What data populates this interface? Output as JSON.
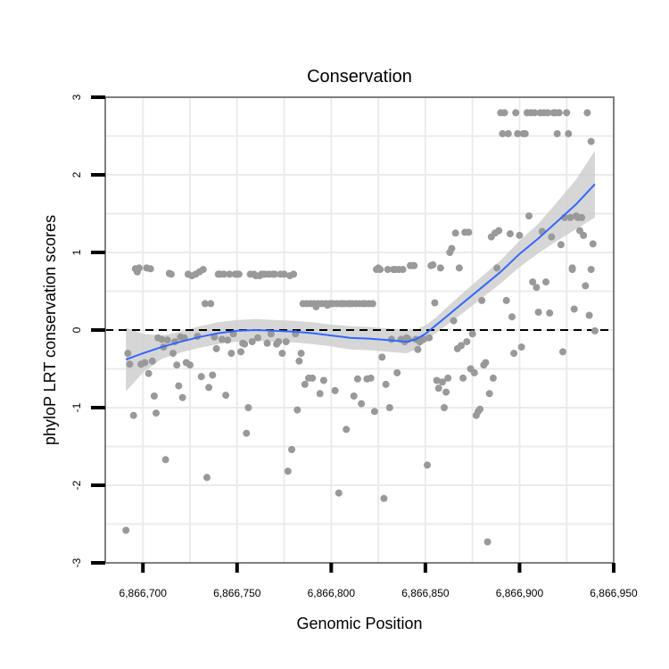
{
  "chart_data": {
    "type": "scatter",
    "title": "Conservation",
    "xlabel": "Genomic Position",
    "ylabel": "phyloP LRT conservation scores",
    "xlim": [
      6866680,
      6866950
    ],
    "ylim": [
      -3,
      3
    ],
    "x_ticks": [
      6866700,
      6866750,
      6866800,
      6866850,
      6866900,
      6866950
    ],
    "x_tick_labels": [
      "6,866,700",
      "6,866,750",
      "6,866,800",
      "6,866,850",
      "6,866,900",
      "6,866,950"
    ],
    "y_ticks": [
      -3,
      -2,
      -1,
      0,
      1,
      2,
      3
    ],
    "y_tick_labels": [
      "-3",
      "-2",
      "-1",
      "0",
      "1",
      "2",
      "3"
    ],
    "reference_line": {
      "y": 0,
      "style": "dashed",
      "color": "#000000"
    },
    "grid": true,
    "colors": {
      "points": "#999999",
      "smooth": "#3366ff",
      "band": "#cccccc",
      "frame": "#7f7f7f",
      "grid": "#ebebeb"
    },
    "points": [
      [
        6866691,
        -2.58
      ],
      [
        6866692,
        -0.3
      ],
      [
        6866693,
        -0.44
      ],
      [
        6866695,
        -1.1
      ],
      [
        6866696,
        0.79
      ],
      [
        6866697,
        0.75
      ],
      [
        6866698,
        0.8
      ],
      [
        6866699,
        -0.44
      ],
      [
        6866701,
        -0.42
      ],
      [
        6866702,
        0.8
      ],
      [
        6866703,
        -0.56
      ],
      [
        6866704,
        0.79
      ],
      [
        6866705,
        -0.4
      ],
      [
        6866706,
        -0.85
      ],
      [
        6866707,
        -1.07
      ],
      [
        6866708,
        -0.1
      ],
      [
        6866710,
        -0.12
      ],
      [
        6866711,
        -0.22
      ],
      [
        6866712,
        -1.67
      ],
      [
        6866713,
        -0.13
      ],
      [
        6866714,
        0.73
      ],
      [
        6866715,
        0.72
      ],
      [
        6866716,
        -0.3
      ],
      [
        6866717,
        -0.15
      ],
      [
        6866718,
        -0.45
      ],
      [
        6866719,
        -0.72
      ],
      [
        6866720,
        -0.09
      ],
      [
        6866721,
        -0.87
      ],
      [
        6866722,
        -0.1
      ],
      [
        6866723,
        -0.42
      ],
      [
        6866724,
        0.72
      ],
      [
        6866725,
        -0.45
      ],
      [
        6866726,
        0.7
      ],
      [
        6866728,
        0.72
      ],
      [
        6866729,
        -0.08
      ],
      [
        6866730,
        0.75
      ],
      [
        6866731,
        -0.6
      ],
      [
        6866732,
        0.78
      ],
      [
        6866733,
        0.34
      ],
      [
        6866734,
        -1.9
      ],
      [
        6866735,
        -0.74
      ],
      [
        6866736,
        0.34
      ],
      [
        6866737,
        -0.58
      ],
      [
        6866738,
        -0.09
      ],
      [
        6866739,
        -0.24
      ],
      [
        6866740,
        0.72
      ],
      [
        6866741,
        0.72
      ],
      [
        6866742,
        -0.12
      ],
      [
        6866743,
        0.72
      ],
      [
        6866744,
        -0.84
      ],
      [
        6866745,
        -0.13
      ],
      [
        6866746,
        0.72
      ],
      [
        6866747,
        -0.3
      ],
      [
        6866748,
        -0.05
      ],
      [
        6866749,
        0.72
      ],
      [
        6866750,
        0.72
      ],
      [
        6866751,
        0.72
      ],
      [
        6866752,
        -0.28
      ],
      [
        6866753,
        -0.17
      ],
      [
        6866754,
        -0.18
      ],
      [
        6866755,
        -1.33
      ],
      [
        6866756,
        -1.0
      ],
      [
        6866757,
        0.72
      ],
      [
        6866758,
        -0.15
      ],
      [
        6866759,
        0.72
      ],
      [
        6866760,
        0.7
      ],
      [
        6866761,
        -0.1
      ],
      [
        6866762,
        0.7
      ],
      [
        6866763,
        0.72
      ],
      [
        6866764,
        0.72
      ],
      [
        6866765,
        0.72
      ],
      [
        6866766,
        -0.17
      ],
      [
        6866767,
        0.72
      ],
      [
        6866768,
        -0.05
      ],
      [
        6866769,
        0.72
      ],
      [
        6866770,
        0.72
      ],
      [
        6866771,
        -0.18
      ],
      [
        6866772,
        -0.15
      ],
      [
        6866773,
        0.72
      ],
      [
        6866774,
        -0.3
      ],
      [
        6866775,
        0.72
      ],
      [
        6866776,
        -0.15
      ],
      [
        6866777,
        -1.82
      ],
      [
        6866778,
        0.7
      ],
      [
        6866779,
        -1.54
      ],
      [
        6866780,
        0.72
      ],
      [
        6866781,
        -0.05
      ],
      [
        6866782,
        -1.03
      ],
      [
        6866783,
        -0.4
      ],
      [
        6866784,
        -0.3
      ],
      [
        6866785,
        0.34
      ],
      [
        6866786,
        -0.7
      ],
      [
        6866787,
        0.34
      ],
      [
        6866788,
        -0.62
      ],
      [
        6866789,
        0.34
      ],
      [
        6866790,
        -0.62
      ],
      [
        6866791,
        0.34
      ],
      [
        6866792,
        0.3
      ],
      [
        6866793,
        0.34
      ],
      [
        6866794,
        -0.82
      ],
      [
        6866795,
        0.34
      ],
      [
        6866796,
        -0.65
      ],
      [
        6866797,
        0.34
      ],
      [
        6866798,
        0.32
      ],
      [
        6866799,
        0.34
      ],
      [
        6866800,
        0.34
      ],
      [
        6866801,
        0.34
      ],
      [
        6866802,
        -0.78
      ],
      [
        6866803,
        0.34
      ],
      [
        6866804,
        -2.1
      ],
      [
        6866805,
        0.34
      ],
      [
        6866806,
        0.34
      ],
      [
        6866807,
        0.34
      ],
      [
        6866808,
        -1.28
      ],
      [
        6866809,
        0.34
      ],
      [
        6866810,
        0.34
      ],
      [
        6866811,
        0.34
      ],
      [
        6866812,
        -0.85
      ],
      [
        6866813,
        0.34
      ],
      [
        6866814,
        -0.63
      ],
      [
        6866815,
        0.34
      ],
      [
        6866816,
        -0.95
      ],
      [
        6866817,
        0.34
      ],
      [
        6866818,
        0.34
      ],
      [
        6866819,
        -0.63
      ],
      [
        6866820,
        0.34
      ],
      [
        6866821,
        -0.62
      ],
      [
        6866822,
        0.34
      ],
      [
        6866823,
        -1.05
      ],
      [
        6866824,
        0.78
      ],
      [
        6866825,
        0.8
      ],
      [
        6866826,
        0.78
      ],
      [
        6866827,
        -0.35
      ],
      [
        6866828,
        -2.17
      ],
      [
        6866829,
        -0.7
      ],
      [
        6866830,
        0.78
      ],
      [
        6866831,
        -1.0
      ],
      [
        6866832,
        -0.12
      ],
      [
        6866833,
        0.78
      ],
      [
        6866834,
        0.78
      ],
      [
        6866835,
        -0.55
      ],
      [
        6866836,
        0.78
      ],
      [
        6866837,
        -0.12
      ],
      [
        6866838,
        0.78
      ],
      [
        6866839,
        -0.15
      ],
      [
        6866840,
        -0.1
      ],
      [
        6866841,
        -0.12
      ],
      [
        6866842,
        0.83
      ],
      [
        6866843,
        0.83
      ],
      [
        6866844,
        0.83
      ],
      [
        6866845,
        -0.12
      ],
      [
        6866846,
        -0.25
      ],
      [
        6866847,
        -0.15
      ],
      [
        6866849,
        -0.12
      ],
      [
        6866851,
        -1.74
      ],
      [
        6866852,
        -0.1
      ],
      [
        6866853,
        0.83
      ],
      [
        6866854,
        0.84
      ],
      [
        6866855,
        0.35
      ],
      [
        6866856,
        -0.65
      ],
      [
        6866857,
        -0.75
      ],
      [
        6866858,
        0.8
      ],
      [
        6866859,
        -0.67
      ],
      [
        6866860,
        -1.0
      ],
      [
        6866861,
        -0.8
      ],
      [
        6866862,
        -0.62
      ],
      [
        6866863,
        1.0
      ],
      [
        6866864,
        1.05
      ],
      [
        6866865,
        0.12
      ],
      [
        6866866,
        1.25
      ],
      [
        6866867,
        -0.24
      ],
      [
        6866868,
        0.8
      ],
      [
        6866869,
        -0.2
      ],
      [
        6866870,
        -0.62
      ],
      [
        6866871,
        1.26
      ],
      [
        6866872,
        -0.15
      ],
      [
        6866873,
        1.26
      ],
      [
        6866874,
        -0.5
      ],
      [
        6866875,
        -0.05
      ],
      [
        6866876,
        -0.55
      ],
      [
        6866877,
        -1.1
      ],
      [
        6866878,
        -1.05
      ],
      [
        6866879,
        -1.02
      ],
      [
        6866880,
        0.38
      ],
      [
        6866881,
        -0.45
      ],
      [
        6866882,
        -0.42
      ],
      [
        6866883,
        -2.73
      ],
      [
        6866884,
        -0.82
      ],
      [
        6866885,
        1.2
      ],
      [
        6866886,
        -0.62
      ],
      [
        6866887,
        1.25
      ],
      [
        6866888,
        0.8
      ],
      [
        6866889,
        1.28
      ],
      [
        6866890,
        2.8
      ],
      [
        6866891,
        2.53
      ],
      [
        6866892,
        2.8
      ],
      [
        6866893,
        0.38
      ],
      [
        6866894,
        2.53
      ],
      [
        6866895,
        1.24
      ],
      [
        6866896,
        0.17
      ],
      [
        6866897,
        -0.3
      ],
      [
        6866898,
        2.8
      ],
      [
        6866899,
        2.53
      ],
      [
        6866900,
        1.22
      ],
      [
        6866901,
        -0.22
      ],
      [
        6866902,
        2.53
      ],
      [
        6866903,
        2.53
      ],
      [
        6866904,
        2.8
      ],
      [
        6866905,
        1.47
      ],
      [
        6866906,
        2.8
      ],
      [
        6866907,
        0.62
      ],
      [
        6866908,
        2.8
      ],
      [
        6866909,
        0.55
      ],
      [
        6866910,
        0.23
      ],
      [
        6866911,
        2.8
      ],
      [
        6866912,
        1.27
      ],
      [
        6866913,
        2.8
      ],
      [
        6866914,
        0.62
      ],
      [
        6866915,
        2.8
      ],
      [
        6866916,
        0.22
      ],
      [
        6866917,
        1.2
      ],
      [
        6866918,
        2.8
      ],
      [
        6866919,
        2.8
      ],
      [
        6866920,
        2.53
      ],
      [
        6866921,
        2.8
      ],
      [
        6866922,
        1.1
      ],
      [
        6866923,
        -0.28
      ],
      [
        6866924,
        1.45
      ],
      [
        6866925,
        2.8
      ],
      [
        6866926,
        2.53
      ],
      [
        6866927,
        1.45
      ],
      [
        6866928,
        0.8
      ],
      [
        6866929,
        0.27
      ],
      [
        6866930,
        1.47
      ],
      [
        6866931,
        1.45
      ],
      [
        6866932,
        1.28
      ],
      [
        6866933,
        1.45
      ],
      [
        6866934,
        1.22
      ],
      [
        6866935,
        0.57
      ],
      [
        6866936,
        2.8
      ],
      [
        6866937,
        0.19
      ],
      [
        6866938,
        2.43
      ],
      [
        6866939,
        1.11
      ],
      [
        6866940,
        -0.01
      ],
      [
        6866938,
        0.78
      ],
      [
        6866928,
        0.78
      ]
    ],
    "smooth": {
      "x": [
        6866691,
        6866700,
        6866710,
        6866720,
        6866730,
        6866740,
        6866750,
        6866760,
        6866770,
        6866780,
        6866790,
        6866800,
        6866810,
        6866820,
        6866830,
        6866840,
        6866845,
        6866850,
        6866855,
        6866860,
        6866870,
        6866880,
        6866890,
        6866900,
        6866910,
        6866920,
        6866930,
        6866940
      ],
      "y": [
        -0.38,
        -0.3,
        -0.22,
        -0.15,
        -0.09,
        -0.04,
        -0.01,
        0.0,
        -0.01,
        -0.02,
        -0.04,
        -0.07,
        -0.1,
        -0.11,
        -0.13,
        -0.15,
        -0.12,
        -0.05,
        0.05,
        0.15,
        0.35,
        0.55,
        0.75,
        0.98,
        1.18,
        1.4,
        1.62,
        1.88
      ],
      "lower": [
        -0.79,
        -0.55,
        -0.37,
        -0.29,
        -0.23,
        -0.18,
        -0.15,
        -0.14,
        -0.15,
        -0.16,
        -0.18,
        -0.21,
        -0.25,
        -0.26,
        -0.28,
        -0.3,
        -0.25,
        -0.16,
        -0.05,
        0.04,
        0.22,
        0.41,
        0.6,
        0.81,
        0.99,
        1.15,
        1.3,
        1.45
      ],
      "upper": [
        0.03,
        -0.05,
        -0.07,
        -0.02,
        0.05,
        0.1,
        0.13,
        0.14,
        0.13,
        0.12,
        0.1,
        0.07,
        0.05,
        0.04,
        0.02,
        0.0,
        0.01,
        0.06,
        0.15,
        0.26,
        0.48,
        0.69,
        0.9,
        1.15,
        1.37,
        1.65,
        1.94,
        2.31
      ]
    }
  }
}
